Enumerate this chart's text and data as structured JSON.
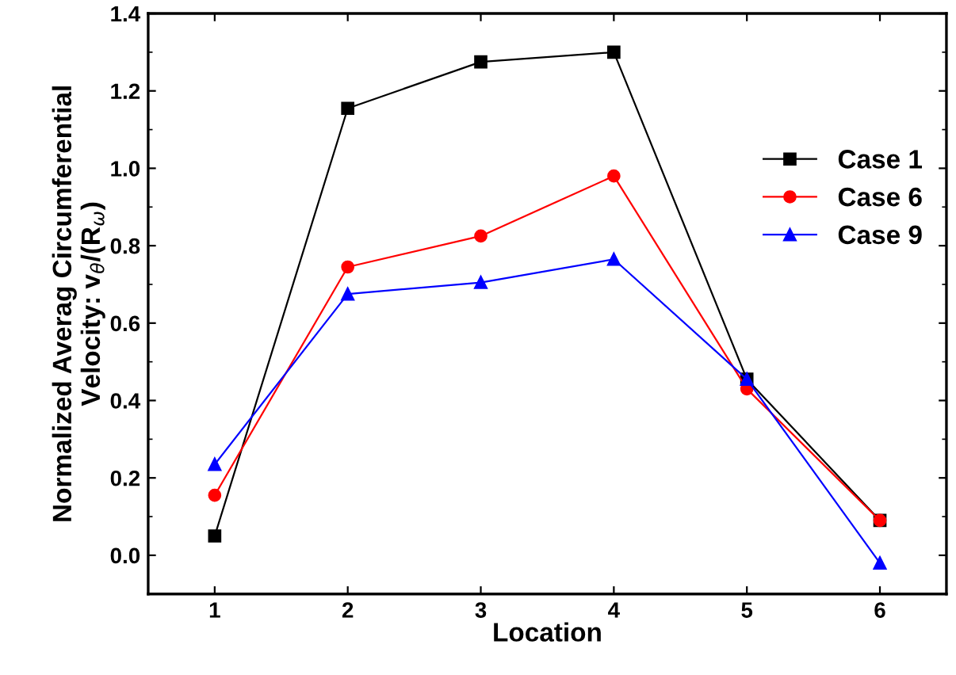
{
  "chart_data": {
    "type": "line",
    "xlabel": "Location",
    "ylabel": "Normalized Averag Circumferential\nVelocity: v$_{θ}$/(R$_{ω}$)",
    "x": [
      1,
      2,
      3,
      4,
      5,
      6
    ],
    "series": [
      {
        "name": "Case 1",
        "color": "#000000",
        "marker": "square",
        "values": [
          0.05,
          1.155,
          1.275,
          1.3,
          0.455,
          0.09
        ]
      },
      {
        "name": "Case 6",
        "color": "#ff0000",
        "marker": "circle",
        "values": [
          0.155,
          0.745,
          0.825,
          0.98,
          0.43,
          0.09
        ]
      },
      {
        "name": "Case 9",
        "color": "#0000ff",
        "marker": "triangle",
        "values": [
          0.235,
          0.675,
          0.705,
          0.765,
          0.455,
          -0.02
        ]
      }
    ],
    "xlim": [
      0.5,
      6.5
    ],
    "xticks": [
      1,
      2,
      3,
      4,
      5,
      6
    ],
    "ylim": [
      -0.1,
      1.4
    ],
    "yticks": [
      {
        "value": 0,
        "label": "0.0"
      },
      0.2,
      0.4,
      0.6,
      0.8,
      {
        "value": 1,
        "label": "1.0"
      },
      1.2,
      1.4
    ],
    "grid": false,
    "legend": "right",
    "line_style": "solid"
  }
}
